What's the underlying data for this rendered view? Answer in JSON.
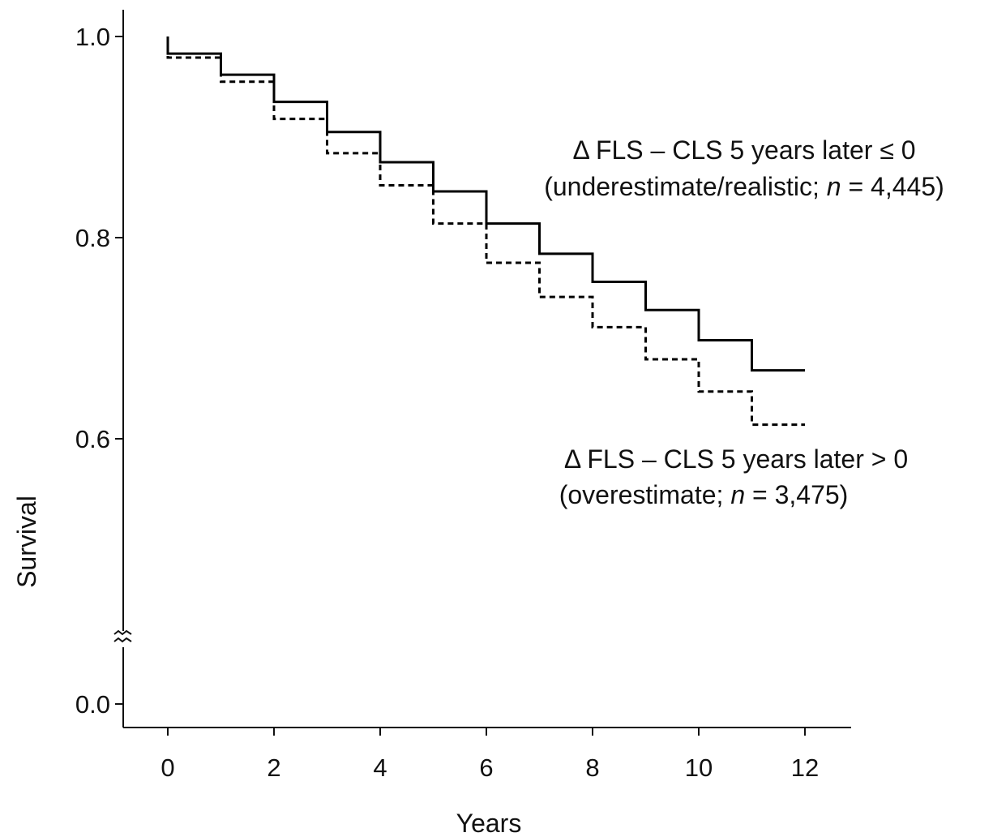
{
  "chart_data": {
    "type": "line",
    "title": "",
    "xlabel": "Years",
    "ylabel": "Survival",
    "xlim": [
      -0.8,
      12.8
    ],
    "x_ticks": [
      0,
      2,
      4,
      6,
      8,
      10,
      12
    ],
    "y_ticks": [
      0.0,
      0.6,
      0.8,
      1.0
    ],
    "y_axis_break": true,
    "grid": false,
    "step": true,
    "series": [
      {
        "style": "solid",
        "x": [
          0,
          1,
          2,
          3,
          4,
          5,
          6,
          7,
          8,
          9,
          10,
          11,
          12
        ],
        "y": [
          0.983,
          0.962,
          0.935,
          0.905,
          0.875,
          0.846,
          0.814,
          0.784,
          0.756,
          0.728,
          0.698,
          0.668,
          0.668
        ]
      },
      {
        "style": "dashed",
        "x": [
          0,
          1,
          2,
          3,
          4,
          5,
          6,
          7,
          8,
          9,
          10,
          11,
          12
        ],
        "y": [
          0.979,
          0.955,
          0.918,
          0.884,
          0.852,
          0.814,
          0.775,
          0.741,
          0.711,
          0.679,
          0.647,
          0.614,
          0.614
        ]
      }
    ],
    "annotations": [
      {
        "line1": "Δ FLS – CLS 5 years later ≤ 0",
        "line2_pre": "(underestimate/realistic; ",
        "line2_n": "n",
        "line2_post": " = 4,445)"
      },
      {
        "line1": "Δ FLS – CLS 5 years later > 0",
        "line2_pre": "(overestimate; ",
        "line2_n": "n",
        "line2_post": " = 3,475)"
      }
    ]
  }
}
